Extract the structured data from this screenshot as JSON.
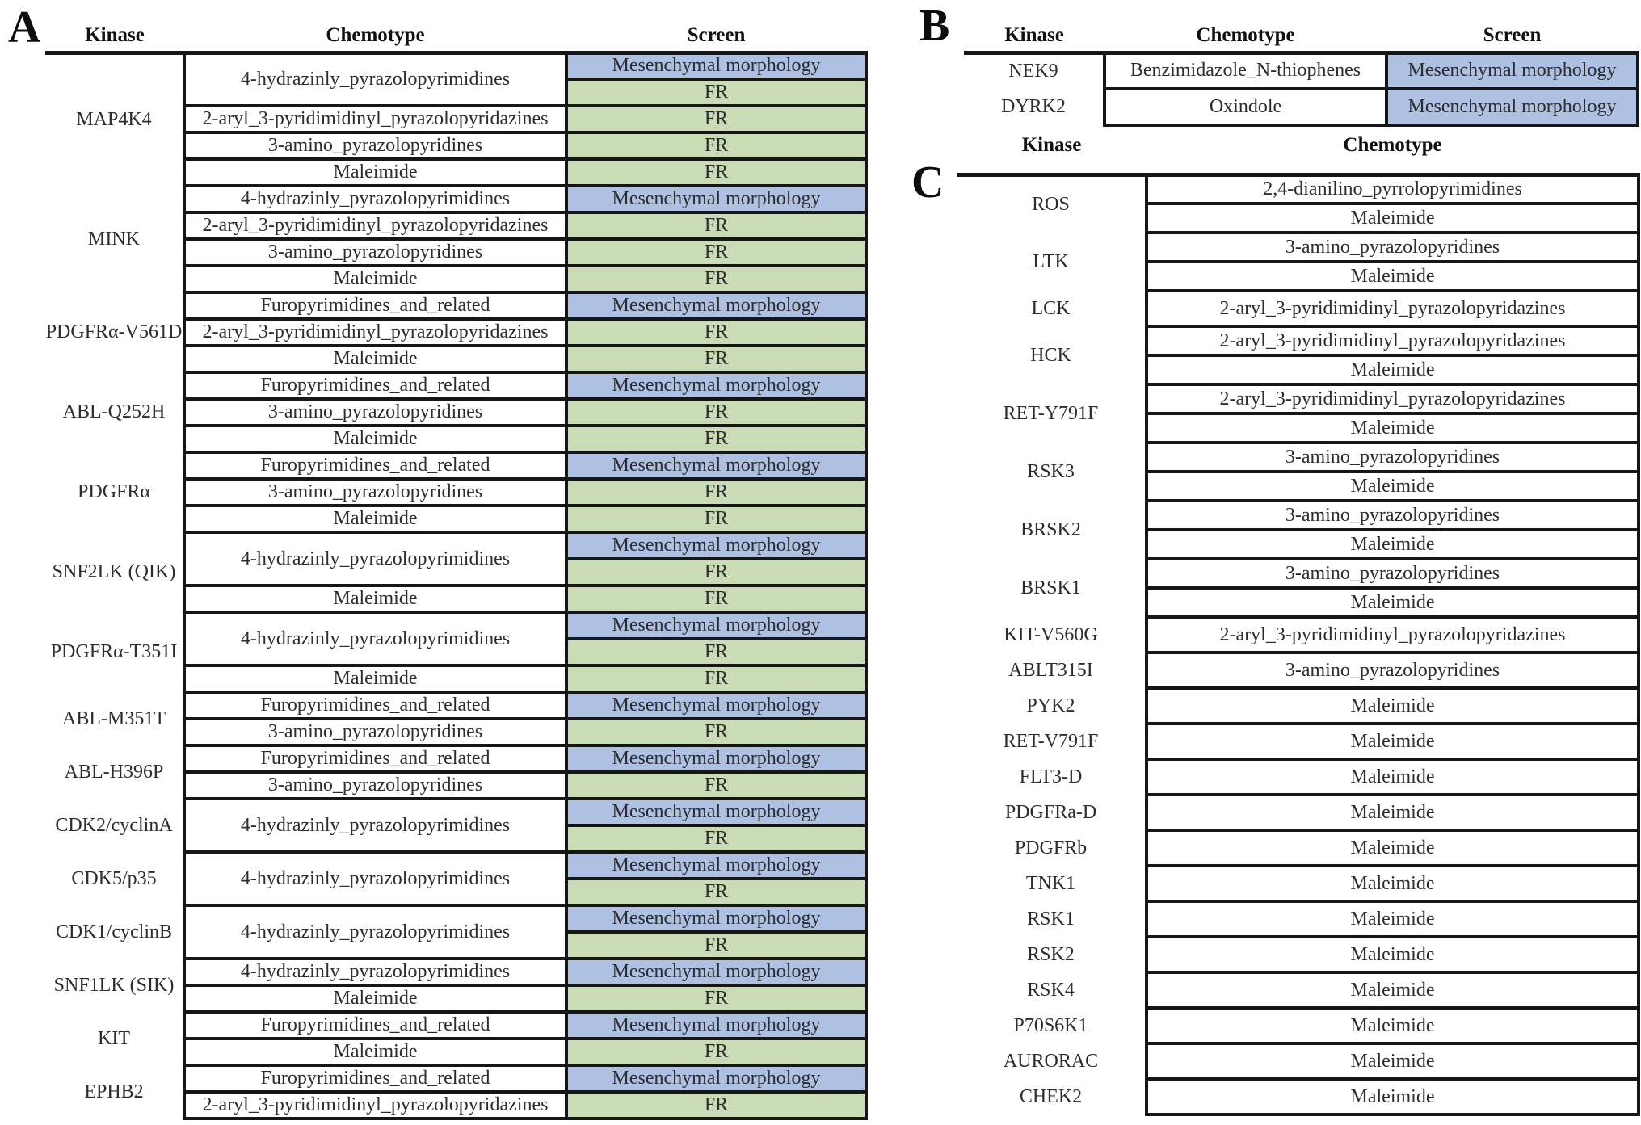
{
  "colors": {
    "screen_fill": {
      "Mesenchymal morphology": "#aec1e3",
      "FR": "#c9dcb5"
    },
    "border": "#161616",
    "text": "#2d2d2d"
  },
  "panel_a": {
    "label": "A",
    "headers": {
      "kinase": "Kinase",
      "chemotype": "Chemotype",
      "screen": "Screen"
    },
    "groups": [
      {
        "kinase": "MAP4K4",
        "entries": [
          {
            "chemotype": "4-hydrazinly_pyrazolopyrimidines",
            "screens": [
              "Mesenchymal morphology",
              "FR"
            ]
          },
          {
            "chemotype": "2-aryl_3-pyridimidinyl_pyrazolopyridazines",
            "screens": [
              "FR"
            ]
          },
          {
            "chemotype": "3-amino_pyrazolopyridines",
            "screens": [
              "FR"
            ]
          },
          {
            "chemotype": "Maleimide",
            "screens": [
              "FR"
            ]
          }
        ]
      },
      {
        "kinase": "MINK",
        "entries": [
          {
            "chemotype": "4-hydrazinly_pyrazolopyrimidines",
            "screens": [
              "Mesenchymal morphology"
            ]
          },
          {
            "chemotype": "2-aryl_3-pyridimidinyl_pyrazolopyridazines",
            "screens": [
              "FR"
            ]
          },
          {
            "chemotype": "3-amino_pyrazolopyridines",
            "screens": [
              "FR"
            ]
          },
          {
            "chemotype": "Maleimide",
            "screens": [
              "FR"
            ]
          }
        ]
      },
      {
        "kinase": "PDGFRα-V561D",
        "entries": [
          {
            "chemotype": "Furopyrimidines_and_related",
            "screens": [
              "Mesenchymal morphology"
            ]
          },
          {
            "chemotype": "2-aryl_3-pyridimidinyl_pyrazolopyridazines",
            "screens": [
              "FR"
            ]
          },
          {
            "chemotype": "Maleimide",
            "screens": [
              "FR"
            ]
          }
        ]
      },
      {
        "kinase": "ABL-Q252H",
        "entries": [
          {
            "chemotype": "Furopyrimidines_and_related",
            "screens": [
              "Mesenchymal morphology"
            ]
          },
          {
            "chemotype": "3-amino_pyrazolopyridines",
            "screens": [
              "FR"
            ]
          },
          {
            "chemotype": "Maleimide",
            "screens": [
              "FR"
            ]
          }
        ]
      },
      {
        "kinase": "PDGFRα",
        "entries": [
          {
            "chemotype": "Furopyrimidines_and_related",
            "screens": [
              "Mesenchymal morphology"
            ]
          },
          {
            "chemotype": "3-amino_pyrazolopyridines",
            "screens": [
              "FR"
            ]
          },
          {
            "chemotype": "Maleimide",
            "screens": [
              "FR"
            ]
          }
        ]
      },
      {
        "kinase": "SNF2LK (QIK)",
        "entries": [
          {
            "chemotype": "4-hydrazinly_pyrazolopyrimidines",
            "screens": [
              "Mesenchymal morphology",
              "FR"
            ]
          },
          {
            "chemotype": "Maleimide",
            "screens": [
              "FR"
            ]
          }
        ]
      },
      {
        "kinase": "PDGFRα-T351I",
        "entries": [
          {
            "chemotype": "4-hydrazinly_pyrazolopyrimidines",
            "screens": [
              "Mesenchymal morphology",
              "FR"
            ]
          },
          {
            "chemotype": "Maleimide",
            "screens": [
              "FR"
            ]
          }
        ]
      },
      {
        "kinase": "ABL-M351T",
        "entries": [
          {
            "chemotype": "Furopyrimidines_and_related",
            "screens": [
              "Mesenchymal morphology"
            ]
          },
          {
            "chemotype": "3-amino_pyrazolopyridines",
            "screens": [
              "FR"
            ]
          }
        ]
      },
      {
        "kinase": "ABL-H396P",
        "entries": [
          {
            "chemotype": "Furopyrimidines_and_related",
            "screens": [
              "Mesenchymal morphology"
            ]
          },
          {
            "chemotype": "3-amino_pyrazolopyridines",
            "screens": [
              "FR"
            ]
          }
        ]
      },
      {
        "kinase": "CDK2/cyclinA",
        "entries": [
          {
            "chemotype": "4-hydrazinly_pyrazolopyrimidines",
            "screens": [
              "Mesenchymal morphology",
              "FR"
            ]
          }
        ]
      },
      {
        "kinase": "CDK5/p35",
        "entries": [
          {
            "chemotype": "4-hydrazinly_pyrazolopyrimidines",
            "screens": [
              "Mesenchymal morphology",
              "FR"
            ]
          }
        ]
      },
      {
        "kinase": "CDK1/cyclinB",
        "entries": [
          {
            "chemotype": "4-hydrazinly_pyrazolopyrimidines",
            "screens": [
              "Mesenchymal morphology",
              "FR"
            ]
          }
        ]
      },
      {
        "kinase": "SNF1LK (SIK)",
        "entries": [
          {
            "chemotype": "4-hydrazinly_pyrazolopyrimidines",
            "screens": [
              "Mesenchymal morphology"
            ]
          },
          {
            "chemotype": "Maleimide",
            "screens": [
              "FR"
            ]
          }
        ]
      },
      {
        "kinase": "KIT",
        "entries": [
          {
            "chemotype": "Furopyrimidines_and_related",
            "screens": [
              "Mesenchymal morphology"
            ]
          },
          {
            "chemotype": "Maleimide",
            "screens": [
              "FR"
            ]
          }
        ]
      },
      {
        "kinase": "EPHB2",
        "entries": [
          {
            "chemotype": "Furopyrimidines_and_related",
            "screens": [
              "Mesenchymal morphology"
            ]
          },
          {
            "chemotype": "2-aryl_3-pyridimidinyl_pyrazolopyridazines",
            "screens": [
              "FR"
            ]
          }
        ]
      }
    ]
  },
  "panel_b": {
    "label": "B",
    "headers": {
      "kinase": "Kinase",
      "chemotype": "Chemotype",
      "screen": "Screen"
    },
    "rows": [
      {
        "kinase": "NEK9",
        "chemotype": "Benzimidazole_N-thiophenes",
        "screen": "Mesenchymal morphology"
      },
      {
        "kinase": "DYRK2",
        "chemotype": "Oxindole",
        "screen": "Mesenchymal morphology"
      }
    ]
  },
  "panel_c": {
    "label": "C",
    "headers": {
      "kinase": "Kinase",
      "chemotype": "Chemotype"
    },
    "groups": [
      {
        "kinase": "ROS",
        "chemotypes": [
          "2,4-dianilino_pyrrolopyrimidines",
          "Maleimide"
        ]
      },
      {
        "kinase": "LTK",
        "chemotypes": [
          "3-amino_pyrazolopyridines",
          "Maleimide"
        ]
      },
      {
        "kinase": "LCK",
        "chemotypes": [
          "2-aryl_3-pyridimidinyl_pyrazolopyridazines"
        ]
      },
      {
        "kinase": "HCK",
        "chemotypes": [
          "2-aryl_3-pyridimidinyl_pyrazolopyridazines",
          "Maleimide"
        ]
      },
      {
        "kinase": "RET-Y791F",
        "chemotypes": [
          "2-aryl_3-pyridimidinyl_pyrazolopyridazines",
          "Maleimide"
        ]
      },
      {
        "kinase": "RSK3",
        "chemotypes": [
          "3-amino_pyrazolopyridines",
          "Maleimide"
        ]
      },
      {
        "kinase": "BRSK2",
        "chemotypes": [
          "3-amino_pyrazolopyridines",
          "Maleimide"
        ]
      },
      {
        "kinase": "BRSK1",
        "chemotypes": [
          "3-amino_pyrazolopyridines",
          "Maleimide"
        ]
      },
      {
        "kinase": "KIT-V560G",
        "chemotypes": [
          "2-aryl_3-pyridimidinyl_pyrazolopyridazines"
        ]
      },
      {
        "kinase": "ABLT315I",
        "chemotypes": [
          "3-amino_pyrazolopyridines"
        ]
      },
      {
        "kinase": "PYK2",
        "chemotypes": [
          "Maleimide"
        ]
      },
      {
        "kinase": "RET-V791F",
        "chemotypes": [
          "Maleimide"
        ]
      },
      {
        "kinase": "FLT3-D",
        "chemotypes": [
          "Maleimide"
        ]
      },
      {
        "kinase": "PDGFRa-D",
        "chemotypes": [
          "Maleimide"
        ]
      },
      {
        "kinase": "PDGFRb",
        "chemotypes": [
          "Maleimide"
        ]
      },
      {
        "kinase": "TNK1",
        "chemotypes": [
          "Maleimide"
        ]
      },
      {
        "kinase": "RSK1",
        "chemotypes": [
          "Maleimide"
        ]
      },
      {
        "kinase": "RSK2",
        "chemotypes": [
          "Maleimide"
        ]
      },
      {
        "kinase": "RSK4",
        "chemotypes": [
          "Maleimide"
        ]
      },
      {
        "kinase": "P70S6K1",
        "chemotypes": [
          "Maleimide"
        ]
      },
      {
        "kinase": "AURORAC",
        "chemotypes": [
          "Maleimide"
        ]
      },
      {
        "kinase": "CHEK2",
        "chemotypes": [
          "Maleimide"
        ]
      }
    ]
  }
}
